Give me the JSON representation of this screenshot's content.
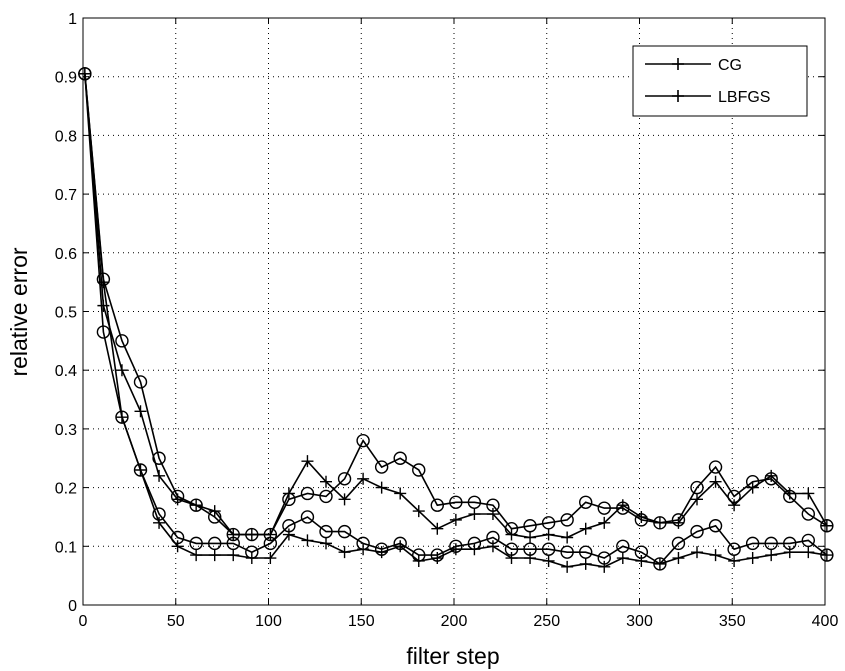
{
  "chart_data": {
    "type": "line",
    "xlabel": "filter step",
    "ylabel": "relative error",
    "xlim": [
      0,
      400
    ],
    "ylim": [
      0,
      1
    ],
    "xticks": [
      0,
      50,
      100,
      150,
      200,
      250,
      300,
      350,
      400
    ],
    "yticks": [
      0,
      0.1,
      0.2,
      0.3,
      0.4,
      0.5,
      0.6,
      0.7,
      0.8,
      0.9,
      1
    ],
    "grid": "dotted",
    "legend_position": "top-right",
    "legend": [
      {
        "label": "CG",
        "marker": "plus"
      },
      {
        "label": "LBFGS",
        "marker": "plus"
      }
    ],
    "x": [
      1,
      11,
      21,
      31,
      41,
      51,
      61,
      71,
      81,
      91,
      101,
      111,
      121,
      131,
      141,
      151,
      161,
      171,
      181,
      191,
      201,
      211,
      221,
      231,
      241,
      251,
      261,
      271,
      281,
      291,
      301,
      311,
      321,
      331,
      341,
      351,
      361,
      371,
      381,
      391,
      401
    ],
    "series": [
      {
        "marker": "plus",
        "values": [
          0.905,
          0.51,
          0.4,
          0.33,
          0.22,
          0.18,
          0.17,
          0.16,
          0.12,
          0.12,
          0.12,
          0.19,
          0.245,
          0.21,
          0.18,
          0.215,
          0.2,
          0.19,
          0.16,
          0.13,
          0.145,
          0.155,
          0.155,
          0.12,
          0.115,
          0.12,
          0.115,
          0.13,
          0.14,
          0.17,
          0.15,
          0.14,
          0.14,
          0.18,
          0.21,
          0.17,
          0.2,
          0.22,
          0.19,
          0.19,
          0.135
        ]
      },
      {
        "marker": "circle",
        "values": [
          0.905,
          0.555,
          0.45,
          0.38,
          0.25,
          0.185,
          0.17,
          0.15,
          0.12,
          0.12,
          0.12,
          0.18,
          0.19,
          0.185,
          0.215,
          0.28,
          0.235,
          0.25,
          0.23,
          0.17,
          0.175,
          0.175,
          0.17,
          0.13,
          0.135,
          0.14,
          0.145,
          0.175,
          0.165,
          0.165,
          0.145,
          0.14,
          0.145,
          0.2,
          0.235,
          0.185,
          0.21,
          0.215,
          0.185,
          0.155,
          0.135
        ]
      },
      {
        "marker": "circle",
        "values": [
          0.905,
          0.465,
          0.32,
          0.23,
          0.155,
          0.115,
          0.105,
          0.105,
          0.105,
          0.09,
          0.105,
          0.135,
          0.15,
          0.125,
          0.125,
          0.105,
          0.095,
          0.105,
          0.085,
          0.085,
          0.1,
          0.105,
          0.115,
          0.095,
          0.095,
          0.095,
          0.09,
          0.09,
          0.08,
          0.1,
          0.09,
          0.07,
          0.105,
          0.125,
          0.135,
          0.095,
          0.105,
          0.105,
          0.105,
          0.11,
          0.085
        ]
      },
      {
        "marker": "plus",
        "values": [
          0.905,
          0.55,
          0.32,
          0.23,
          0.14,
          0.1,
          0.085,
          0.085,
          0.085,
          0.08,
          0.08,
          0.12,
          0.11,
          0.105,
          0.09,
          0.095,
          0.09,
          0.1,
          0.075,
          0.08,
          0.095,
          0.095,
          0.1,
          0.08,
          0.08,
          0.075,
          0.065,
          0.07,
          0.065,
          0.08,
          0.075,
          0.07,
          0.08,
          0.09,
          0.085,
          0.075,
          0.08,
          0.085,
          0.09,
          0.09,
          0.085
        ]
      }
    ]
  }
}
